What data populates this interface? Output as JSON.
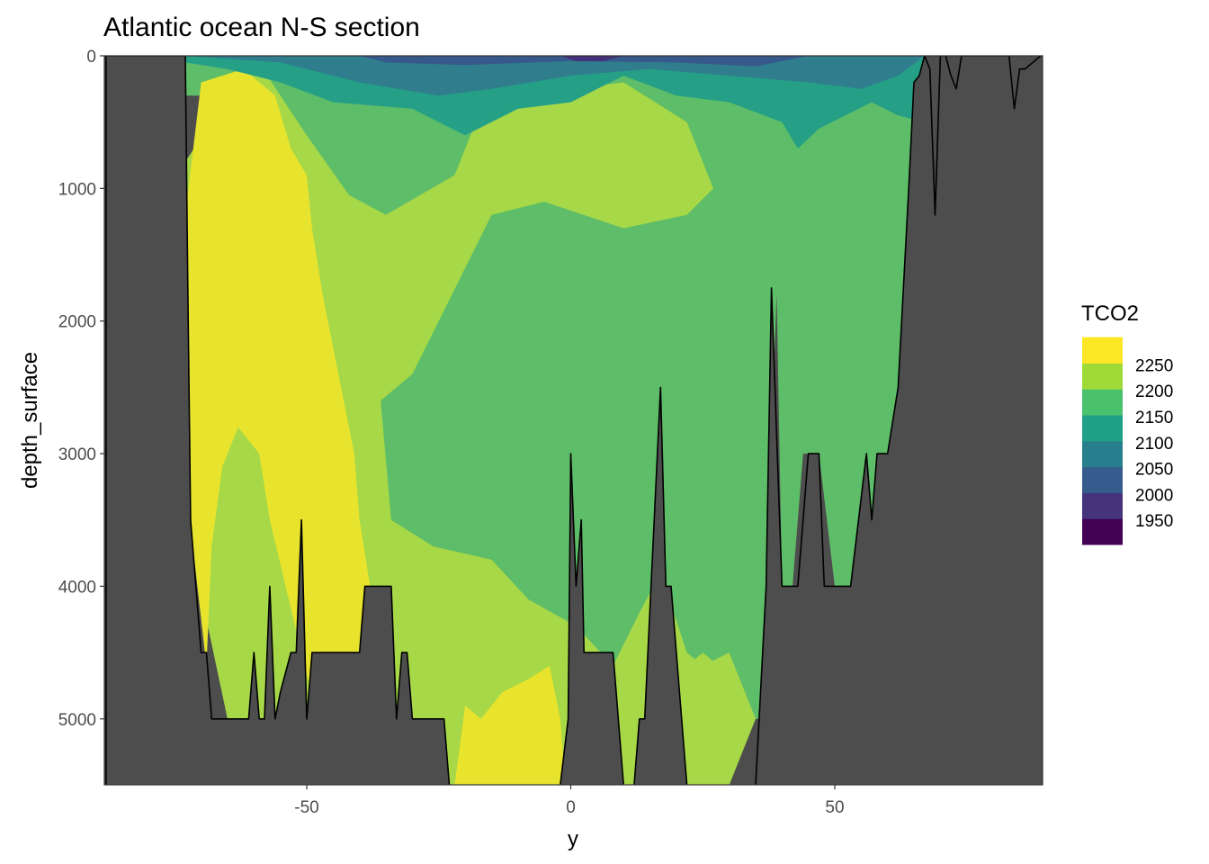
{
  "chart_data": {
    "type": "heatmap",
    "title": "Atlantic ocean N-S section",
    "xlabel": "y",
    "ylabel": "depth_surface",
    "xlim": [
      -88,
      90
    ],
    "ylim": [
      5500,
      0
    ],
    "y_reversed": true,
    "xticks": [
      {
        "value": -50,
        "label": "-50"
      },
      {
        "value": 0,
        "label": "0"
      },
      {
        "value": 50,
        "label": "50"
      }
    ],
    "yticks": [
      {
        "value": 0,
        "label": "0"
      },
      {
        "value": 1000,
        "label": "1000"
      },
      {
        "value": 2000,
        "label": "2000"
      },
      {
        "value": 3000,
        "label": "3000"
      },
      {
        "value": 4000,
        "label": "4000"
      },
      {
        "value": 5000,
        "label": "5000"
      }
    ],
    "panel_background": "#4d4d4d",
    "legend": {
      "title": "TCO2",
      "placement": "right",
      "bins": [
        {
          "color": "#440154",
          "label": "1950"
        },
        {
          "color": "#46337e",
          "label": "2000"
        },
        {
          "color": "#365c8d",
          "label": "2050"
        },
        {
          "color": "#277f8e",
          "label": "2100"
        },
        {
          "color": "#1fa187",
          "label": "2150"
        },
        {
          "color": "#4ac16d",
          "label": "2200"
        },
        {
          "color": "#a0da39",
          "label": "2250"
        },
        {
          "color": "#fde725",
          "label": ""
        }
      ]
    },
    "regions": [
      {
        "level": 2200,
        "color": "#5ebd68",
        "points": [
          [
            -73,
            0
          ],
          [
            67,
            0
          ],
          [
            67,
            500
          ],
          [
            63,
            2000
          ],
          [
            62,
            3000
          ],
          [
            58,
            3000
          ],
          [
            57,
            4000
          ],
          [
            50,
            4000
          ],
          [
            47,
            3000
          ],
          [
            44,
            3000
          ],
          [
            42,
            4000
          ],
          [
            40,
            4000
          ],
          [
            39,
            1800
          ],
          [
            36,
            5000
          ],
          [
            30,
            5000
          ],
          [
            20,
            5000
          ],
          [
            -10,
            4500
          ],
          [
            -35,
            3700
          ],
          [
            -50,
            2000
          ],
          [
            -60,
            300
          ],
          [
            -73,
            300
          ]
        ]
      },
      {
        "level": 2250,
        "color": "#a6d847",
        "points": [
          [
            -73,
            800
          ],
          [
            -60,
            0
          ],
          [
            -50,
            600
          ],
          [
            -42,
            1050
          ],
          [
            -35,
            1200
          ],
          [
            -22,
            900
          ],
          [
            -15,
            200
          ],
          [
            0,
            250
          ],
          [
            10,
            200
          ],
          [
            22,
            500
          ],
          [
            27,
            1000
          ],
          [
            22,
            1200
          ],
          [
            10,
            1300
          ],
          [
            -5,
            1100
          ],
          [
            -15,
            1200
          ],
          [
            -20,
            1600
          ],
          [
            -25,
            2000
          ],
          [
            -30,
            2400
          ],
          [
            -36,
            2600
          ],
          [
            -34,
            3500
          ],
          [
            -26,
            3700
          ],
          [
            -15,
            3800
          ],
          [
            -8,
            4100
          ],
          [
            1,
            4300
          ],
          [
            8,
            4600
          ],
          [
            13,
            4200
          ],
          [
            17,
            3900
          ],
          [
            22,
            4500
          ],
          [
            25,
            4600
          ],
          [
            30,
            4500
          ],
          [
            35,
            5000
          ],
          [
            30,
            5500
          ],
          [
            -30,
            5500
          ],
          [
            -65,
            5000
          ],
          [
            -73,
            3500
          ]
        ]
      },
      {
        "level": 2250,
        "color": "#a6d847",
        "points": [
          [
            22,
            4600
          ],
          [
            25,
            4500
          ],
          [
            28,
            4600
          ],
          [
            30,
            5100
          ],
          [
            22,
            5200
          ]
        ]
      },
      {
        "level": 2300,
        "color": "#e8e42d",
        "points": [
          [
            -73,
            1200
          ],
          [
            -70,
            200
          ],
          [
            -62,
            100
          ],
          [
            -56,
            300
          ],
          [
            -53,
            700
          ],
          [
            -50,
            900
          ],
          [
            -49,
            1300
          ],
          [
            -47,
            1800
          ],
          [
            -44,
            2400
          ],
          [
            -41,
            3000
          ],
          [
            -40,
            3500
          ],
          [
            -38,
            4000
          ],
          [
            -40,
            4500
          ],
          [
            -43,
            4900
          ],
          [
            -48,
            5000
          ],
          [
            -54,
            4000
          ],
          [
            -57,
            3500
          ],
          [
            -59,
            3000
          ],
          [
            -63,
            2800
          ],
          [
            -66,
            3100
          ],
          [
            -68,
            3700
          ],
          [
            -69,
            4600
          ],
          [
            -73,
            3200
          ]
        ]
      },
      {
        "level": 2300,
        "color": "#e8e42d",
        "points": [
          [
            -22,
            5500
          ],
          [
            -20,
            4900
          ],
          [
            -17,
            5000
          ],
          [
            -13,
            4800
          ],
          [
            -8,
            4700
          ],
          [
            -4,
            4600
          ],
          [
            -2,
            5000
          ],
          [
            -1,
            5500
          ]
        ]
      },
      {
        "level": 2150,
        "color": "#25a086",
        "points": [
          [
            -73,
            0
          ],
          [
            67,
            0
          ],
          [
            67,
            500
          ],
          [
            62,
            450
          ],
          [
            57,
            350
          ],
          [
            52,
            450
          ],
          [
            47,
            550
          ],
          [
            43,
            700
          ],
          [
            40,
            500
          ],
          [
            30,
            350
          ],
          [
            20,
            300
          ],
          [
            10,
            150
          ],
          [
            0,
            350
          ],
          [
            -10,
            400
          ],
          [
            -20,
            600
          ],
          [
            -30,
            400
          ],
          [
            -45,
            350
          ],
          [
            -55,
            200
          ],
          [
            -65,
            100
          ],
          [
            -73,
            50
          ]
        ]
      },
      {
        "level": 2100,
        "color": "#2f7d8d",
        "points": [
          [
            -73,
            0
          ],
          [
            67,
            0
          ],
          [
            62,
            150
          ],
          [
            55,
            250
          ],
          [
            45,
            200
          ],
          [
            30,
            150
          ],
          [
            15,
            100
          ],
          [
            0,
            150
          ],
          [
            -15,
            250
          ],
          [
            -25,
            300
          ],
          [
            -40,
            200
          ],
          [
            -55,
            50
          ],
          [
            -73,
            0
          ]
        ]
      },
      {
        "level": 2050,
        "color": "#37588a",
        "points": [
          [
            -40,
            0
          ],
          [
            45,
            0
          ],
          [
            35,
            80
          ],
          [
            20,
            50
          ],
          [
            0,
            40
          ],
          [
            -20,
            70
          ],
          [
            -35,
            50
          ]
        ]
      },
      {
        "level": 2000,
        "color": "#432f7a",
        "points": [
          [
            -2,
            0
          ],
          [
            10,
            0
          ],
          [
            6,
            40
          ],
          [
            1,
            40
          ]
        ]
      }
    ],
    "bathymetry": [
      [
        -88,
        0
      ],
      [
        -73,
        0
      ],
      [
        -72.5,
        1800
      ],
      [
        -72,
        3500
      ],
      [
        -70,
        4500
      ],
      [
        -69,
        4500
      ],
      [
        -68,
        5000
      ],
      [
        -61,
        5000
      ],
      [
        -60,
        4500
      ],
      [
        -59,
        5000
      ],
      [
        -58,
        5000
      ],
      [
        -57,
        4000
      ],
      [
        -56,
        5000
      ],
      [
        -55,
        4800
      ],
      [
        -53,
        4500
      ],
      [
        -52,
        4500
      ],
      [
        -51,
        3500
      ],
      [
        -50,
        5000
      ],
      [
        -49,
        4500
      ],
      [
        -40,
        4500
      ],
      [
        -39,
        4000
      ],
      [
        -34,
        4000
      ],
      [
        -33,
        5000
      ],
      [
        -32,
        4500
      ],
      [
        -31,
        4500
      ],
      [
        -30,
        5000
      ],
      [
        -24,
        5000
      ],
      [
        -23,
        5500
      ],
      [
        -2,
        5500
      ],
      [
        -0.5,
        5000
      ],
      [
        0,
        3000
      ],
      [
        1,
        4000
      ],
      [
        2,
        3500
      ],
      [
        2.5,
        4500
      ],
      [
        8,
        4500
      ],
      [
        10,
        5500
      ],
      [
        12,
        5500
      ],
      [
        13,
        5000
      ],
      [
        14,
        5000
      ],
      [
        17,
        2500
      ],
      [
        18,
        4000
      ],
      [
        19,
        4000
      ],
      [
        22,
        5500
      ],
      [
        35,
        5500
      ],
      [
        37,
        4000
      ],
      [
        38,
        1750
      ],
      [
        40,
        4000
      ],
      [
        43,
        4000
      ],
      [
        45,
        3000
      ],
      [
        47,
        3000
      ],
      [
        48,
        4000
      ],
      [
        53,
        4000
      ],
      [
        56,
        3000
      ],
      [
        57,
        3500
      ],
      [
        58,
        3000
      ],
      [
        60,
        3000
      ],
      [
        62,
        2500
      ],
      [
        64,
        1000
      ],
      [
        65,
        200
      ],
      [
        66,
        150
      ],
      [
        67,
        0
      ],
      [
        68,
        100
      ],
      [
        69,
        1200
      ],
      [
        70,
        0
      ],
      [
        71,
        0
      ],
      [
        72,
        150
      ],
      [
        73,
        250
      ],
      [
        74,
        0
      ],
      [
        83,
        0
      ],
      [
        84,
        400
      ],
      [
        85,
        100
      ],
      [
        86,
        100
      ],
      [
        89,
        0
      ],
      [
        90,
        0
      ],
      [
        90,
        5500
      ],
      [
        -88,
        5500
      ]
    ]
  }
}
